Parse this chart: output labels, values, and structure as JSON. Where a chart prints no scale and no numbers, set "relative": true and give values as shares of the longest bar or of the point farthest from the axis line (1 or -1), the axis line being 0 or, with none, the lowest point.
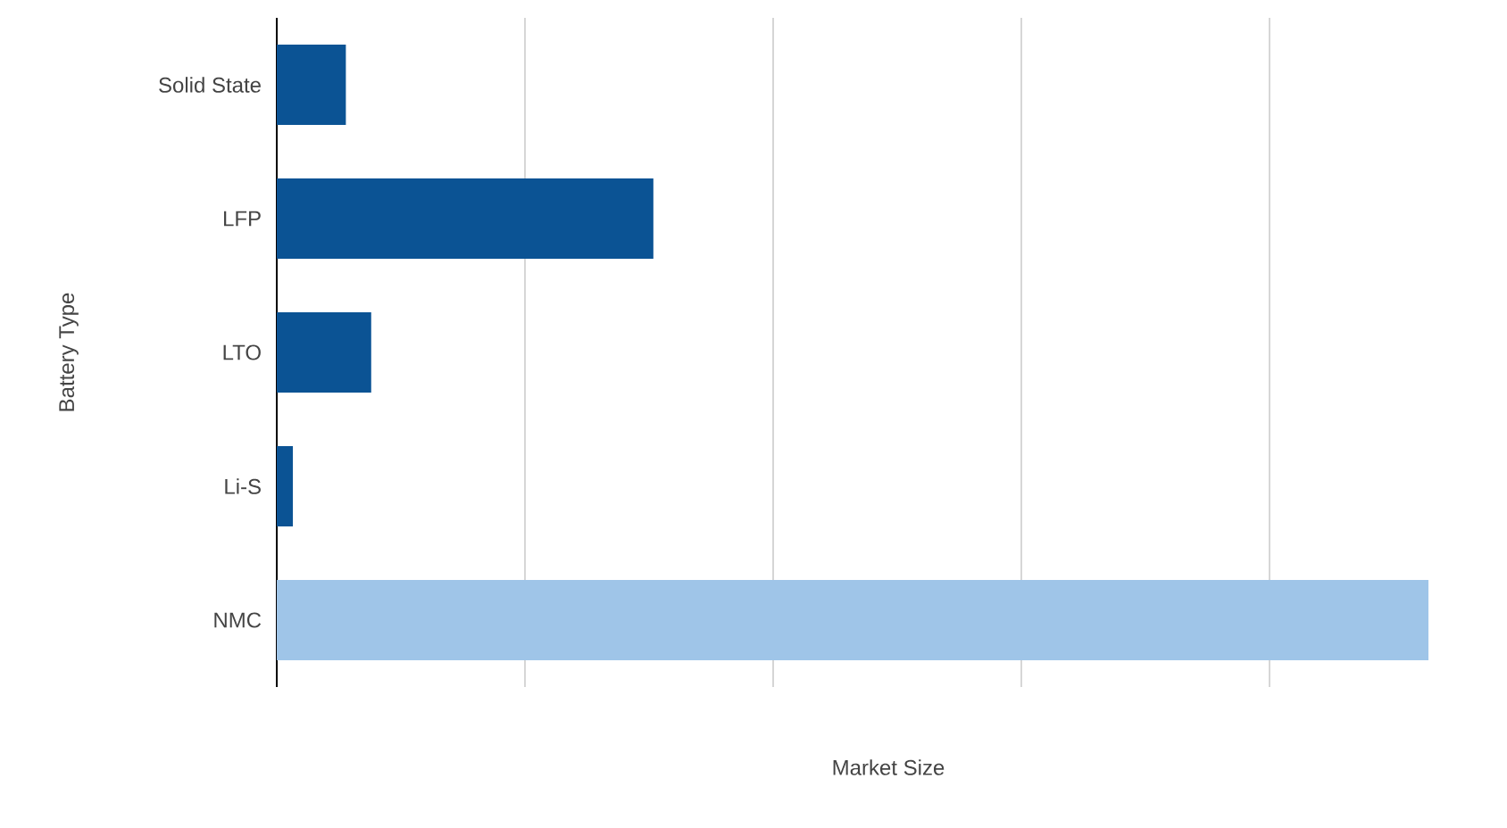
{
  "chart_data": {
    "type": "bar",
    "orientation": "horizontal",
    "relative": true,
    "xlabel": "Market Size",
    "ylabel": "Battery Type",
    "categories": [
      "Solid State",
      "LFP",
      "LTO",
      "Li-S",
      "NMC"
    ],
    "values": [
      0.06,
      0.327,
      0.082,
      0.014,
      1
    ],
    "colors": [
      "#0b5394",
      "#0b5394",
      "#0b5394",
      "#0b5394",
      "#9fc5e8"
    ],
    "grid": "x"
  }
}
